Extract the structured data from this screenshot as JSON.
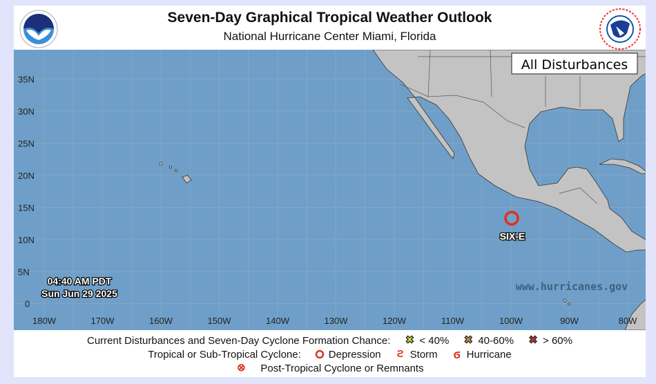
{
  "header": {
    "title": "Seven-Day Graphical Tropical Weather Outlook",
    "subtitle": "National Hurricane Center  Miami, Florida",
    "left_logo": "NOAA",
    "right_logo": "NATIONAL WEATHER SERVICE"
  },
  "map": {
    "basin_label": "All Disturbances",
    "lat_labels": [
      "35N",
      "30N",
      "25N",
      "20N",
      "15N",
      "10N",
      "5N",
      "0"
    ],
    "lon_labels": [
      "180W",
      "170W",
      "160W",
      "150W",
      "140W",
      "130W",
      "120W",
      "110W",
      "100W",
      "90W",
      "80W"
    ],
    "timestamp": [
      "04:40 AM PDT",
      "Sun Jun 29 2025"
    ],
    "watermark": "www.hurricanes.gov",
    "systems": [
      {
        "name": "SIX-E",
        "type": "Depression",
        "lat": 13.5,
        "lon": -100.0
      }
    ],
    "colors": {
      "ocean": "#6f9fc8",
      "land": "#c3c3c3",
      "depression": "#e0301e"
    }
  },
  "legend": {
    "row1_label": "Current Disturbances and Seven-Day Cyclone Formation Chance:",
    "low": "< 40%",
    "medium": "40-60%",
    "high": "> 60%",
    "row2_label": "Tropical or Sub-Tropical Cyclone:",
    "depression": "Depression",
    "storm": "Storm",
    "hurricane": "Hurricane",
    "post_tropical": "Post-Tropical Cyclone or Remnants",
    "colors": {
      "low": "#f5f52a",
      "medium": "#f0a040",
      "high": "#e03020"
    }
  }
}
